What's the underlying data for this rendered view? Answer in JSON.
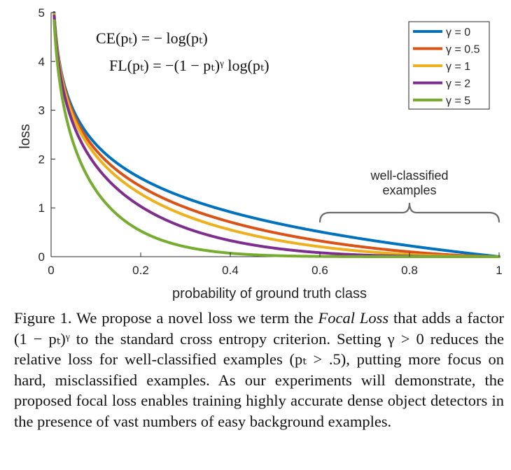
{
  "chart_data": {
    "type": "line",
    "title": "",
    "xlabel": "probability of ground truth class",
    "ylabel": "loss",
    "xlim": [
      0,
      1
    ],
    "ylim": [
      0,
      5
    ],
    "x_ticks": [
      "0",
      "0.2",
      "0.4",
      "0.6",
      "0.8",
      "1"
    ],
    "y_ticks": [
      "0",
      "1",
      "2",
      "3",
      "4",
      "5"
    ],
    "grid": false,
    "legend_position": "top-right",
    "function": "-(1-p)^gamma * log(p)",
    "series": [
      {
        "name": "γ = 0",
        "gamma": 0,
        "color": "#0072BD"
      },
      {
        "name": "γ = 0.5",
        "gamma": 0.5,
        "color": "#D95319"
      },
      {
        "name": "γ = 1",
        "gamma": 1,
        "color": "#EDB120"
      },
      {
        "name": "γ = 2",
        "gamma": 2,
        "color": "#7E2F8E"
      },
      {
        "name": "γ = 5",
        "gamma": 5,
        "color": "#77AC30"
      }
    ],
    "formulas": {
      "ce": "CE(pₜ) = − log(pₜ)",
      "fl": "FL(pₜ) = −(1 − pₜ)ᵞ log(pₜ)"
    },
    "annotation": {
      "line1": "well-classified",
      "line2": "examples",
      "x_range": [
        0.6,
        1.0
      ]
    }
  },
  "caption": {
    "label": "Figure 1. We propose a novel loss we term the ",
    "term": "Focal Loss",
    "part2": " that adds a factor (1 − pₜ)ᵞ to the standard cross entropy criterion. Setting γ > 0 reduces the relative loss for well-classified examples (pₜ > .5), putting more focus on hard, misclassified examples. As our experiments will demonstrate, the proposed focal loss enables training highly accurate dense object detectors in the presence of vast numbers of easy background examples."
  }
}
